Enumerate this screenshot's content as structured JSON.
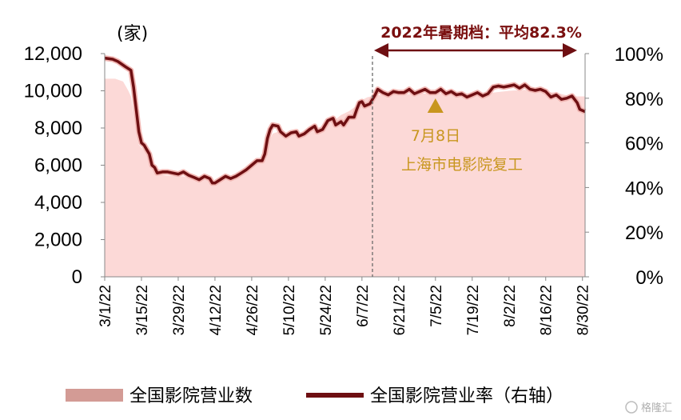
{
  "chart_data": {
    "type": "area",
    "y_unit_label": "(家)",
    "ylim": [
      0,
      12000
    ],
    "yticks": [
      "0",
      "2,000",
      "4,000",
      "6,000",
      "8,000",
      "10,000",
      "12,000"
    ],
    "y2lim": [
      0,
      100
    ],
    "y2ticks": [
      "0%",
      "20%",
      "40%",
      "60%",
      "80%",
      "100%"
    ],
    "x_ticks": [
      "3/1/22",
      "3/15/22",
      "3/29/22",
      "4/12/22",
      "4/26/22",
      "5/10/22",
      "5/24/22",
      "6/7/22",
      "6/21/22",
      "7/5/22",
      "7/19/22",
      "8/2/22",
      "8/16/22",
      "8/30/22"
    ],
    "x_tick_days": [
      0,
      14,
      28,
      42,
      56,
      70,
      84,
      98,
      112,
      126,
      140,
      154,
      168,
      182
    ],
    "x_day_max": 183,
    "series": [
      {
        "name": "全国影院营业数",
        "axis": "left",
        "style": "area",
        "color": "#fcd9d7",
        "points": [
          [
            0,
            10650
          ],
          [
            4,
            10650
          ],
          [
            7,
            10500
          ],
          [
            9,
            10000
          ],
          [
            10,
            9700
          ],
          [
            11,
            8800
          ],
          [
            12,
            7800
          ],
          [
            13,
            7100
          ],
          [
            14,
            6950
          ],
          [
            15,
            6800
          ],
          [
            17,
            6400
          ],
          [
            19,
            5800
          ],
          [
            21,
            5500
          ],
          [
            23,
            5450
          ],
          [
            26,
            5420
          ],
          [
            30,
            5400
          ],
          [
            34,
            5250
          ],
          [
            36,
            5300
          ],
          [
            39,
            5220
          ],
          [
            42,
            5180
          ],
          [
            46,
            5250
          ],
          [
            49,
            5450
          ],
          [
            52,
            5500
          ],
          [
            55,
            5750
          ],
          [
            58,
            6200
          ],
          [
            60,
            6500
          ],
          [
            62,
            7150
          ],
          [
            64,
            7700
          ],
          [
            66,
            7800
          ],
          [
            68,
            7550
          ],
          [
            71,
            7650
          ],
          [
            74,
            7700
          ],
          [
            76,
            7800
          ],
          [
            79,
            7850
          ],
          [
            82,
            8050
          ],
          [
            84,
            8150
          ],
          [
            87,
            8350
          ],
          [
            90,
            8700
          ],
          [
            93,
            8900
          ],
          [
            95,
            9100
          ],
          [
            97,
            9300
          ],
          [
            98,
            9500
          ],
          [
            100,
            9650
          ],
          [
            103,
            9750
          ],
          [
            106,
            9800
          ],
          [
            112,
            9800
          ],
          [
            120,
            9850
          ],
          [
            126,
            9850
          ],
          [
            132,
            9850
          ],
          [
            140,
            9850
          ],
          [
            148,
            9900
          ],
          [
            154,
            10000
          ],
          [
            160,
            10050
          ],
          [
            166,
            9950
          ],
          [
            172,
            9900
          ],
          [
            176,
            9750
          ],
          [
            180,
            9700
          ],
          [
            183,
            9700
          ]
        ]
      },
      {
        "name": "全国影院营业率（右轴）",
        "axis": "right",
        "style": "line",
        "color": "#6e0f12",
        "points": [
          [
            0,
            98
          ],
          [
            3,
            97.5
          ],
          [
            5,
            96.5
          ],
          [
            8,
            94
          ],
          [
            10,
            92.5
          ],
          [
            11,
            85
          ],
          [
            12,
            75
          ],
          [
            13,
            65
          ],
          [
            14,
            60
          ],
          [
            15,
            59
          ],
          [
            16,
            57
          ],
          [
            17,
            55
          ],
          [
            18,
            50
          ],
          [
            19,
            49
          ],
          [
            20,
            46.5
          ],
          [
            22,
            47
          ],
          [
            24,
            47
          ],
          [
            26,
            46.5
          ],
          [
            28,
            46
          ],
          [
            30,
            47
          ],
          [
            32,
            45.5
          ],
          [
            34,
            44.5
          ],
          [
            36,
            43.5
          ],
          [
            38,
            45
          ],
          [
            40,
            44
          ],
          [
            41,
            42
          ],
          [
            42,
            42
          ],
          [
            44,
            43.5
          ],
          [
            46,
            45
          ],
          [
            48,
            44
          ],
          [
            50,
            45
          ],
          [
            52,
            46.5
          ],
          [
            54,
            48
          ],
          [
            56,
            50
          ],
          [
            58,
            52
          ],
          [
            60,
            52
          ],
          [
            61,
            55
          ],
          [
            62,
            62
          ],
          [
            63,
            66
          ],
          [
            64,
            68
          ],
          [
            66,
            67.5
          ],
          [
            67,
            65
          ],
          [
            69,
            63
          ],
          [
            71,
            64.5
          ],
          [
            73,
            65
          ],
          [
            74,
            63
          ],
          [
            76,
            64
          ],
          [
            78,
            66
          ],
          [
            80,
            67.5
          ],
          [
            81,
            65
          ],
          [
            83,
            66
          ],
          [
            85,
            70
          ],
          [
            87,
            71
          ],
          [
            88,
            68
          ],
          [
            90,
            69.5
          ],
          [
            91,
            68
          ],
          [
            93,
            71.5
          ],
          [
            95,
            71.5
          ],
          [
            96,
            75
          ],
          [
            97,
            78
          ],
          [
            98,
            78.5
          ],
          [
            99,
            76.5
          ],
          [
            101,
            77.5
          ],
          [
            103,
            81.5
          ],
          [
            104,
            84
          ],
          [
            106,
            82.5
          ],
          [
            108,
            81.5
          ],
          [
            110,
            83
          ],
          [
            112,
            82.5
          ],
          [
            114,
            82.5
          ],
          [
            116,
            84
          ],
          [
            118,
            82
          ],
          [
            120,
            83
          ],
          [
            122,
            84
          ],
          [
            124,
            82.5
          ],
          [
            126,
            82.5
          ],
          [
            128,
            84
          ],
          [
            130,
            82
          ],
          [
            132,
            83
          ],
          [
            134,
            81.5
          ],
          [
            136,
            82
          ],
          [
            138,
            80.5
          ],
          [
            140,
            81.5
          ],
          [
            142,
            82.5
          ],
          [
            144,
            81
          ],
          [
            146,
            82
          ],
          [
            148,
            85
          ],
          [
            150,
            85.5
          ],
          [
            152,
            85
          ],
          [
            154,
            85.5
          ],
          [
            156,
            86
          ],
          [
            158,
            84.5
          ],
          [
            160,
            86
          ],
          [
            162,
            84
          ],
          [
            164,
            83.5
          ],
          [
            166,
            84
          ],
          [
            168,
            83
          ],
          [
            170,
            80.5
          ],
          [
            172,
            81.5
          ],
          [
            174,
            79.5
          ],
          [
            176,
            80
          ],
          [
            178,
            81
          ],
          [
            180,
            78
          ],
          [
            181,
            75
          ],
          [
            183,
            74
          ]
        ]
      }
    ],
    "divider_day": 102,
    "period_label": "2022年暑期档：平均82.3%",
    "period_range_days": [
      102,
      183
    ],
    "annotation": {
      "day": 126,
      "lines": [
        "7月8日",
        "上海市电影院复工"
      ],
      "color": "#c8961e"
    },
    "legend": {
      "placement": "bottom",
      "items": [
        "全国影院营业数",
        "全国影院营业率（右轴）"
      ]
    },
    "grid": false
  },
  "watermark": "格隆汇"
}
